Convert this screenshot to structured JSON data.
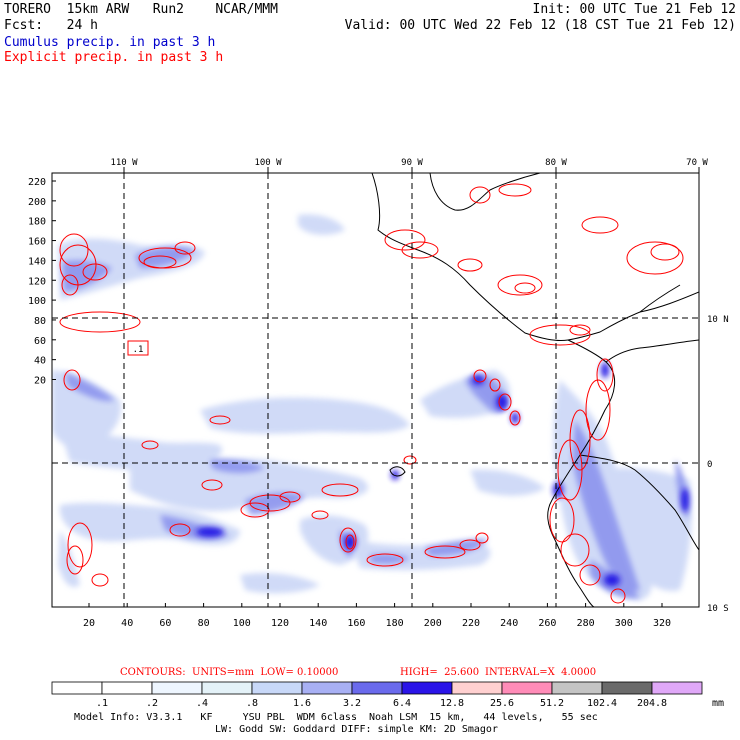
{
  "header": {
    "line1_left": "TORERO  15km ARW   Run2    NCAR/MMM",
    "line1_right": "Init: 00 UTC Tue 21 Feb 12",
    "line2_left": "Fcst:   24 h",
    "line2_right": "Valid: 00 UTC Wed 22 Feb 12 (18 CST Tue 21 Feb 12)",
    "legend_cumulus": "Cumulus precip. in past 3 h",
    "legend_explicit": "Explicit precip. in past 3 h",
    "legend_cumulus_color": "#0000cc",
    "legend_explicit_color": "#ff0000"
  },
  "map": {
    "lon_labels": [
      "110 W",
      "100 W",
      "90 W",
      "80 W",
      "70 W"
    ],
    "lat_labels": [
      "10 N",
      "0",
      "10 S"
    ],
    "y_ticks": [
      "220",
      "200",
      "180",
      "160",
      "140",
      "120",
      "100",
      "80",
      "60",
      "40",
      "20"
    ],
    "x_ticks": [
      "20",
      "40",
      "60",
      "80",
      "100",
      "120",
      "140",
      "160",
      "180",
      "200",
      "220",
      "240",
      "260",
      "280",
      "300",
      "320"
    ],
    "marker_label": ".1"
  },
  "contour_info": {
    "units": "CONTOURS:  UNITS=mm  LOW= 0.10000",
    "high": "HIGH=  25.600",
    "interval": "INTERVAL=X  4.0000"
  },
  "colorbar": {
    "unit": "mm",
    "labels": [
      ".1",
      ".2",
      ".4",
      ".8",
      "1.6",
      "3.2",
      "6.4",
      "12.8",
      "25.6",
      "51.2",
      "102.4",
      "204.8"
    ],
    "colors": [
      "#ffffff",
      "#ffffff",
      "#eef6ff",
      "#e4f2f8",
      "#c8d8f8",
      "#a8b0f4",
      "#6a6aec",
      "#2a14e8",
      "#ffd0d0",
      "#ff8cb8",
      "#c4c4c4",
      "#6a6a6a",
      "#e0a8f8"
    ]
  },
  "footer": {
    "line1": "Model Info: V3.3.1   KF     YSU PBL  WDM 6class  Noah LSM  15 km,   44 levels,   55 sec",
    "line2": "LW: Godd SW: Goddard DIFF: simple KM: 2D Smagor"
  }
}
